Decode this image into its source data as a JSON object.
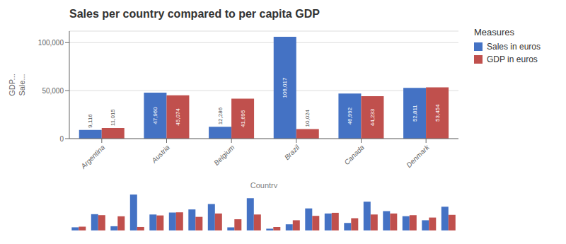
{
  "chart_data": [
    {
      "type": "bar",
      "title": "Sales per country compared to per capita GDP",
      "categories": [
        "Argentina",
        "Austria",
        "Belgium",
        "Brazil",
        "Canada",
        "Denmark"
      ],
      "series": [
        {
          "name": "Sales in euros",
          "color": "#4472C4",
          "values": [
            9116,
            47960,
            12286,
            106017,
            46992,
            52811
          ],
          "value_labels": [
            "9,116",
            "47,960",
            "12,286",
            "106,017",
            "46,992",
            "52,811"
          ]
        },
        {
          "name": "GDP in euros",
          "color": "#C0504D",
          "values": [
            11015,
            45074,
            41695,
            10024,
            44233,
            53454
          ],
          "value_labels": [
            "11,015",
            "45,074",
            "41,695",
            "10,024",
            "44,233",
            "53,454"
          ]
        }
      ],
      "ylim": [
        0,
        112000
      ],
      "yticks": [
        0,
        {
          "value": 50000,
          "label": "50,000"
        },
        {
          "value": 100000,
          "label": "100,000"
        }
      ],
      "xlabel": "Country",
      "ylabel": [
        "GDP...",
        "Sale..."
      ],
      "grid": true,
      "legend": "right",
      "legend_title": "Measures",
      "data_labels": true
    },
    {
      "type": "bar",
      "categories": [
        null,
        null,
        null,
        null,
        null,
        null,
        null,
        null,
        null,
        null,
        null,
        null,
        null,
        null,
        null,
        null,
        null,
        null,
        null,
        null
      ],
      "series": [
        {
          "name": "Sales in euros",
          "color": "#4472C4",
          "values": [
            9116,
            47960,
            12286,
            106017,
            46992,
            52811,
            62000,
            78000,
            9000,
            95000,
            5000,
            18000,
            65000,
            50000,
            22000,
            85000,
            57000,
            42000,
            30000,
            70000
          ]
        },
        {
          "name": "GDP in euros",
          "color": "#C0504D",
          "values": [
            11015,
            45074,
            41695,
            10024,
            44233,
            53454,
            40000,
            50000,
            33000,
            47000,
            10000,
            30000,
            43000,
            52000,
            36000,
            47000,
            50000,
            45000,
            38000,
            46000
          ]
        }
      ],
      "ylim": [
        -500,
        116618.7
      ],
      "tick_labels": false
    }
  ]
}
